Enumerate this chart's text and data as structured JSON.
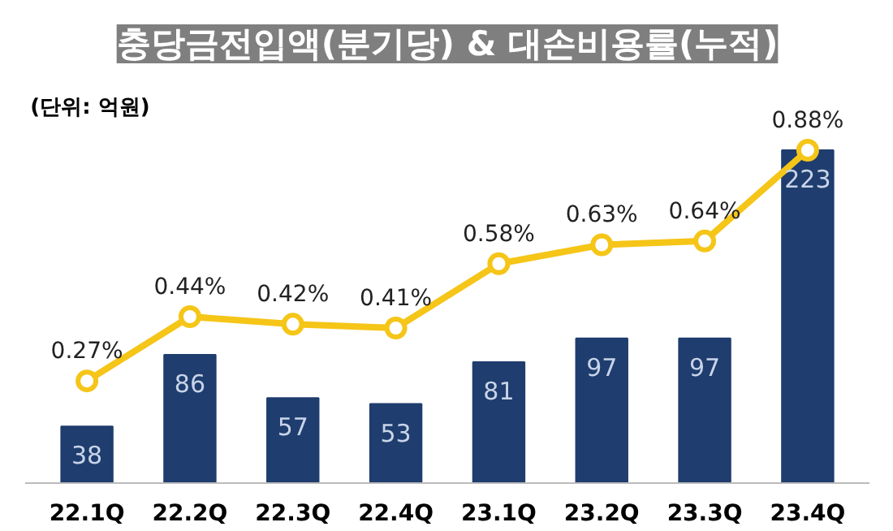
{
  "chart_data": {
    "type": "bar",
    "title": "충당금전입액(분기당) & 대손비용률(누적)",
    "annotations": [
      "(단위: 억원)"
    ],
    "categories": [
      "22.1Q",
      "22.2Q",
      "22.3Q",
      "22.4Q",
      "23.1Q",
      "23.2Q",
      "23.3Q",
      "23.4Q"
    ],
    "series": [
      {
        "color": "#1f3d6e",
        "values": [
          38,
          86,
          57,
          53,
          81,
          97,
          97,
          223
        ],
        "value_labels": [
          "38",
          "86",
          "57",
          "53",
          "81",
          "97",
          "97",
          "223"
        ]
      },
      {
        "type": "line",
        "axis": "y2",
        "color": "#f5c518",
        "values": [
          0.27,
          0.44,
          0.42,
          0.41,
          0.58,
          0.63,
          0.64,
          0.88
        ],
        "value_labels": [
          "0.27%",
          "0.44%",
          "0.42%",
          "0.41%",
          "0.58%",
          "0.63%",
          "0.64%",
          "0.88%"
        ]
      }
    ],
    "tick_labels": "x",
    "marker": "circle",
    "line_style": "solid",
    "grid": false
  }
}
